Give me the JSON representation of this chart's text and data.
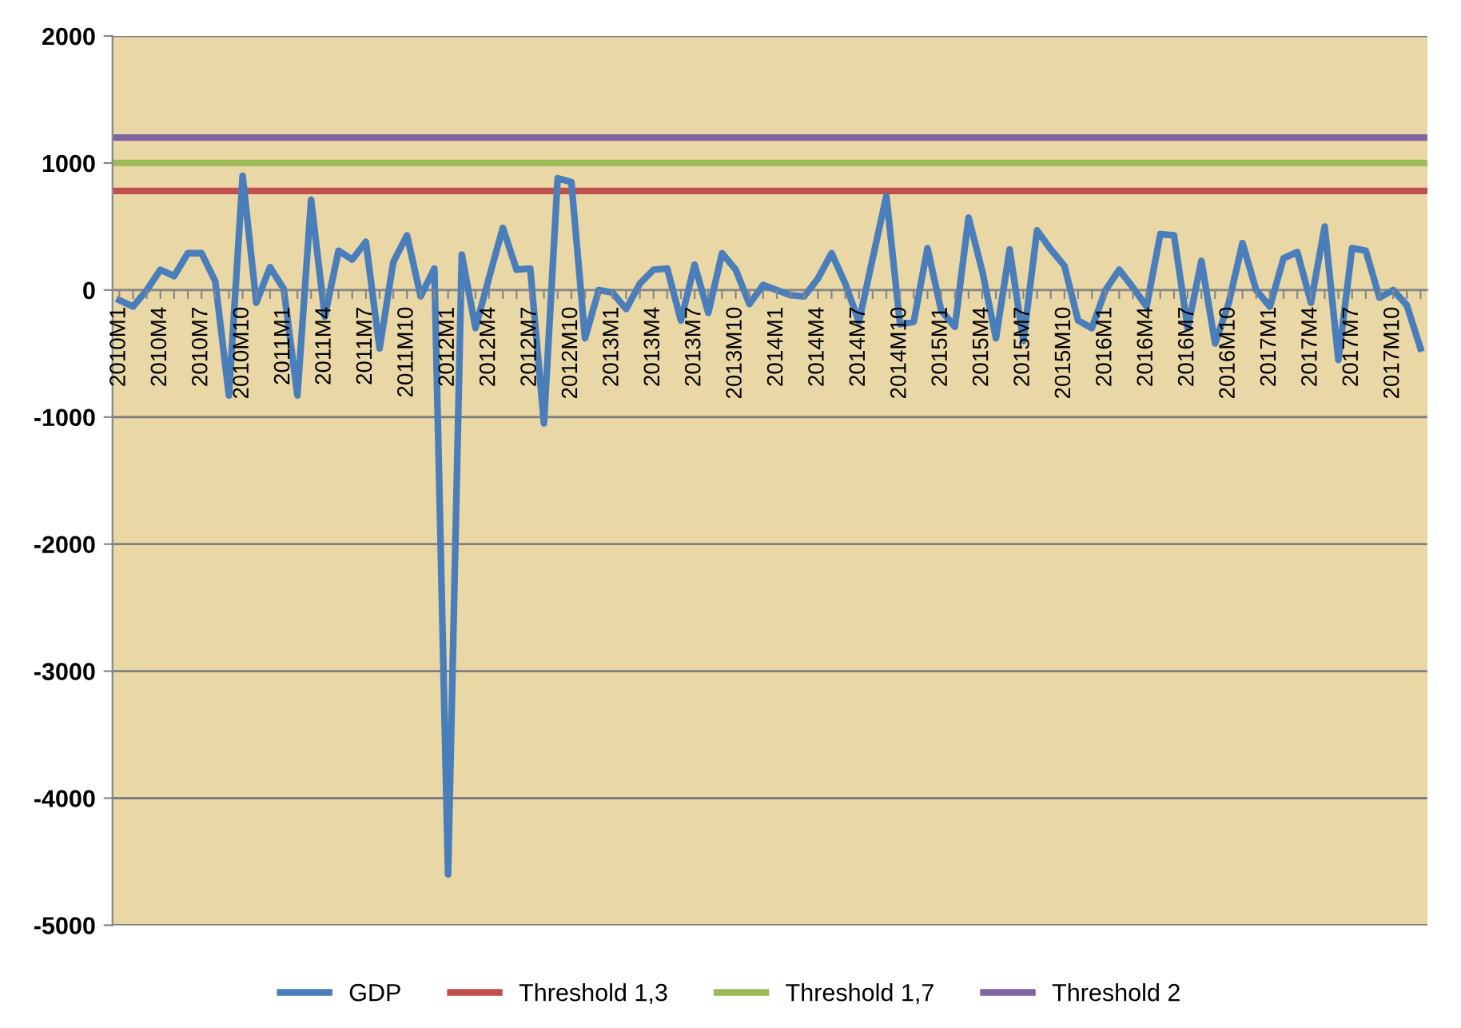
{
  "chart_data": {
    "type": "line",
    "categories": [
      "2010M1",
      null,
      null,
      "2010M4",
      null,
      null,
      "2010M7",
      null,
      null,
      "2010M10",
      null,
      null,
      "2011M1",
      null,
      null,
      "2011M4",
      null,
      null,
      "2011M7",
      null,
      null,
      "2011M10",
      null,
      null,
      "2012M1",
      null,
      null,
      "2012M4",
      null,
      null,
      "2012M7",
      null,
      null,
      "2012M10",
      null,
      null,
      "2013M1",
      null,
      null,
      "2013M4",
      null,
      null,
      "2013M7",
      null,
      null,
      "2013M10",
      null,
      null,
      "2014M1",
      null,
      null,
      "2014M4",
      null,
      null,
      "2014M7",
      null,
      null,
      "2014M10",
      null,
      null,
      "2015M1",
      null,
      null,
      "2015M4",
      null,
      null,
      "2015M7",
      null,
      null,
      "2015M10",
      null,
      null,
      "2016M1",
      null,
      null,
      "2016M4",
      null,
      null,
      "2016M7",
      null,
      null,
      "2016M10",
      null,
      null,
      "2017M1",
      null,
      null,
      "2017M4",
      null,
      null,
      "2017M7",
      null,
      null,
      "2017M10",
      null,
      null
    ],
    "series": [
      {
        "name": "GDP",
        "color": "#4a7ebb",
        "values": [
          -80,
          -130,
          0,
          160,
          110,
          290,
          290,
          70,
          -830,
          900,
          -100,
          180,
          10,
          -830,
          710,
          -210,
          310,
          240,
          380,
          -460,
          220,
          430,
          -50,
          170,
          -4600,
          280,
          -300,
          100,
          490,
          160,
          170,
          -1050,
          880,
          850,
          -380,
          0,
          -20,
          -150,
          50,
          160,
          170,
          -240,
          200,
          -180,
          290,
          160,
          -110,
          40,
          0,
          -40,
          -50,
          90,
          290,
          50,
          -250,
          250,
          740,
          -270,
          -250,
          330,
          -160,
          -290,
          570,
          150,
          -380,
          320,
          -400,
          470,
          320,
          190,
          -240,
          -300,
          0,
          160,
          20,
          -130,
          440,
          430,
          -300,
          230,
          -420,
          -100,
          370,
          0,
          -130,
          250,
          300,
          -100,
          500,
          -550,
          330,
          310,
          -60,
          0,
          -120,
          -460
        ]
      }
    ],
    "ref_lines": [
      {
        "axis": "y",
        "value": 780,
        "label": "Threshold 1,3",
        "color": "#c0504d"
      },
      {
        "axis": "y",
        "value": 1000,
        "label": "Threshold 1,7",
        "color": "#9bbb59"
      },
      {
        "axis": "y",
        "value": 1200,
        "label": "Threshold 2",
        "color": "#8064a2"
      }
    ],
    "ylim": [
      -5000,
      2000
    ],
    "yticks": [
      -5000,
      -4000,
      -3000,
      -2000,
      -1000,
      0,
      1000,
      2000
    ],
    "grid": "y",
    "legend": "bottom"
  }
}
